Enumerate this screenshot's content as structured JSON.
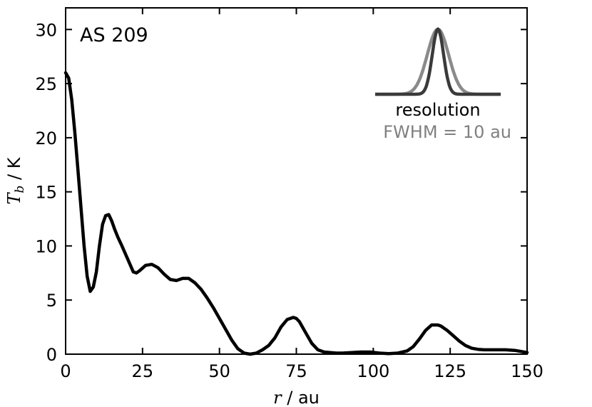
{
  "chart_data": {
    "type": "line",
    "annotation": "AS 209",
    "xlabel_var": "r",
    "xlabel_unit": " / au",
    "ylabel_var": "T",
    "ylabel_sub": "b",
    "ylabel_unit": " / K",
    "xlim": [
      0,
      150
    ],
    "ylim": [
      0,
      32
    ],
    "xticks": [
      0,
      25,
      50,
      75,
      100,
      125,
      150
    ],
    "yticks": [
      0,
      5,
      10,
      15,
      20,
      25,
      30
    ],
    "grid": false,
    "series": [
      {
        "color": "#000000",
        "x": [
          0,
          1,
          2,
          3,
          4,
          5,
          6,
          7,
          8,
          9,
          10,
          11,
          12,
          13,
          14,
          15,
          16,
          17,
          18,
          20,
          22,
          23,
          24,
          26,
          28,
          30,
          32,
          34,
          36,
          38,
          40,
          42,
          44,
          46,
          48,
          50,
          52,
          54,
          56,
          58,
          60,
          62,
          64,
          66,
          68,
          70,
          72,
          74,
          75,
          76,
          78,
          80,
          82,
          84,
          86,
          88,
          90,
          93,
          96,
          99,
          102,
          105,
          108,
          111,
          113,
          115,
          117,
          119,
          121,
          122,
          124,
          126,
          128,
          130,
          132,
          134,
          136,
          138,
          140,
          143,
          146,
          150
        ],
        "y": [
          26.0,
          25.5,
          23.5,
          20.5,
          17.0,
          13.5,
          10.0,
          7.2,
          5.8,
          6.2,
          7.6,
          10.0,
          12.0,
          12.8,
          12.9,
          12.3,
          11.5,
          10.8,
          10.2,
          8.9,
          7.6,
          7.5,
          7.7,
          8.2,
          8.3,
          8.0,
          7.4,
          6.9,
          6.8,
          7.0,
          7.0,
          6.6,
          6.0,
          5.2,
          4.3,
          3.3,
          2.3,
          1.3,
          0.5,
          0.1,
          0.0,
          0.1,
          0.4,
          0.8,
          1.5,
          2.5,
          3.2,
          3.4,
          3.3,
          3.0,
          2.0,
          1.0,
          0.4,
          0.2,
          0.15,
          0.1,
          0.1,
          0.15,
          0.2,
          0.2,
          0.1,
          0.05,
          0.1,
          0.3,
          0.7,
          1.4,
          2.2,
          2.7,
          2.7,
          2.6,
          2.2,
          1.7,
          1.2,
          0.8,
          0.55,
          0.45,
          0.4,
          0.4,
          0.4,
          0.4,
          0.35,
          0.15
        ]
      }
    ],
    "inset": {
      "label": "resolution",
      "fwhm_text": "FWHM = 10 au",
      "fwhm_color": "#808080",
      "beam_color_light": "#8a8a8a",
      "beam_color_dark": "#3a3a3a"
    }
  }
}
